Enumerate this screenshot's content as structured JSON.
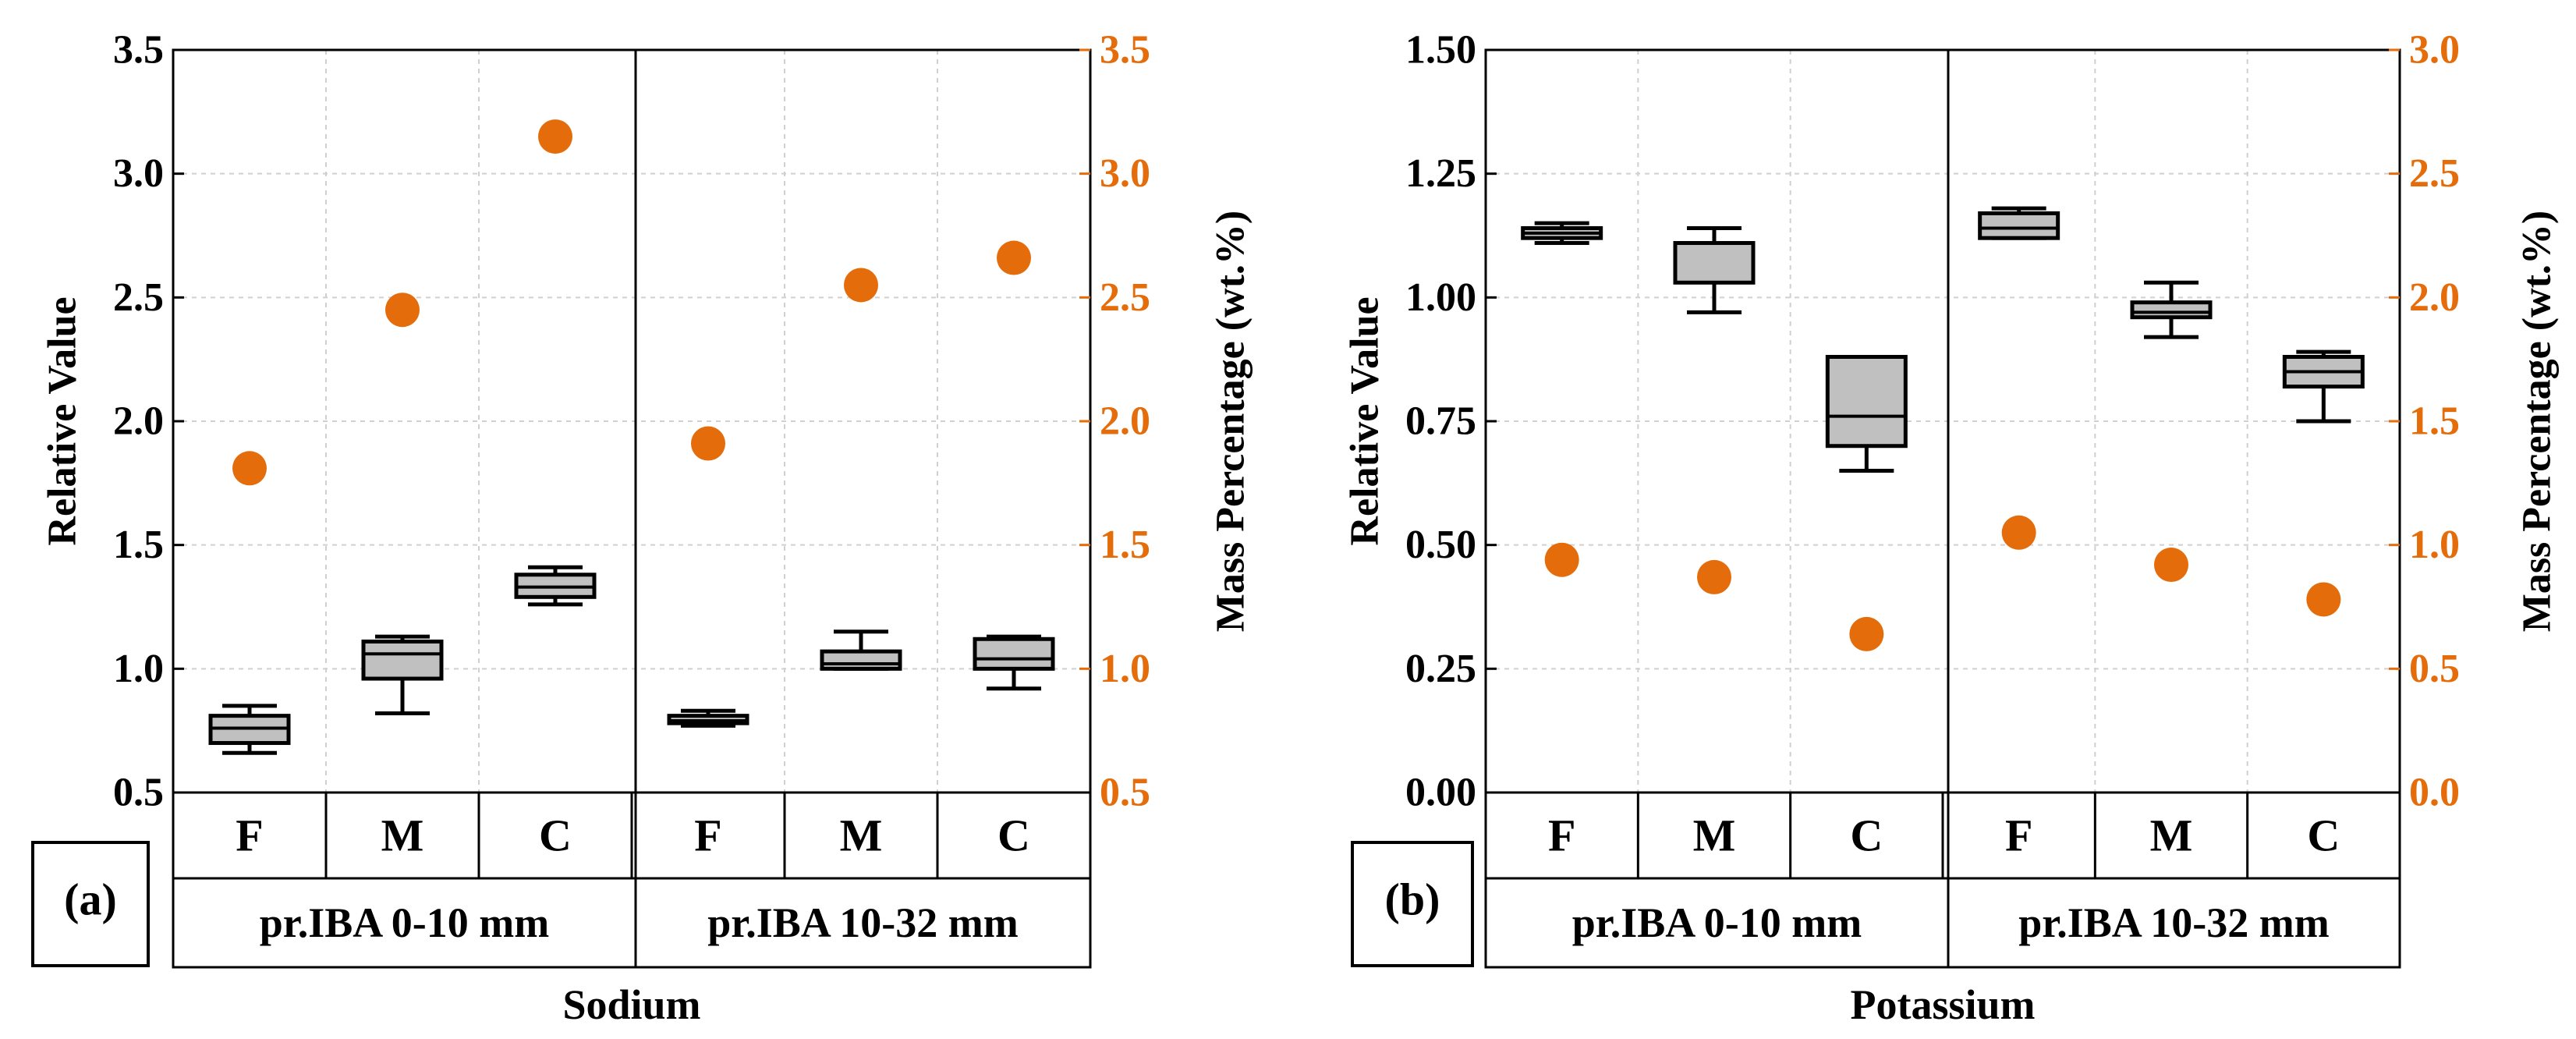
{
  "colors": {
    "box_fill": "#c0c0c0",
    "axis": "#000000",
    "mass_marker": "#e46c0a",
    "grid": "#d0d0d0"
  },
  "chart_data": [
    {
      "type": "box",
      "panel_label": "(a)",
      "xlabel": "Sodium",
      "ylabel_left": "Relative Value",
      "ylabel_right": "Mass Percentage (wt.%)",
      "ylim_left": [
        0.5,
        3.5
      ],
      "ylim_right": [
        0.5,
        3.5
      ],
      "yticks_left": [
        "0.5",
        "1.0",
        "1.5",
        "2.0",
        "2.5",
        "3.0",
        "3.5"
      ],
      "yticks_right": [
        "0.5",
        "1.0",
        "1.5",
        "2.0",
        "2.5",
        "3.0",
        "3.5"
      ],
      "groups": [
        "pr.IBA 0-10 mm",
        "pr.IBA 10-32 mm"
      ],
      "categories": [
        "F",
        "M",
        "C",
        "F",
        "M",
        "C"
      ],
      "boxes": [
        {
          "category": "F",
          "group": "pr.IBA 0-10 mm",
          "min": 0.66,
          "q1": 0.7,
          "median": 0.76,
          "q3": 0.81,
          "max": 0.85
        },
        {
          "category": "M",
          "group": "pr.IBA 0-10 mm",
          "min": 0.82,
          "q1": 0.96,
          "median": 1.06,
          "q3": 1.11,
          "max": 1.13
        },
        {
          "category": "C",
          "group": "pr.IBA 0-10 mm",
          "min": 1.26,
          "q1": 1.29,
          "median": 1.33,
          "q3": 1.38,
          "max": 1.41
        },
        {
          "category": "F",
          "group": "pr.IBA 10-32 mm",
          "min": 0.77,
          "q1": 0.78,
          "median": 0.79,
          "q3": 0.81,
          "max": 0.83
        },
        {
          "category": "M",
          "group": "pr.IBA 10-32 mm",
          "min": 1.0,
          "q1": 1.0,
          "median": 1.02,
          "q3": 1.07,
          "max": 1.15
        },
        {
          "category": "C",
          "group": "pr.IBA 10-32 mm",
          "min": 0.92,
          "q1": 1.0,
          "median": 1.04,
          "q3": 1.12,
          "max": 1.13
        }
      ],
      "mass_percentage": [
        1.81,
        2.45,
        3.15,
        1.91,
        2.55,
        2.66
      ]
    },
    {
      "type": "box",
      "panel_label": "(b)",
      "xlabel": "Potassium",
      "ylabel_left": "Relative Value",
      "ylabel_right": "Mass Percentage (wt.%)",
      "ylim_left": [
        0.0,
        1.5
      ],
      "ylim_right": [
        0.0,
        3.0
      ],
      "yticks_left": [
        "0.00",
        "0.25",
        "0.50",
        "0.75",
        "1.00",
        "1.25",
        "1.50"
      ],
      "yticks_right": [
        "0.0",
        "0.5",
        "1.0",
        "1.5",
        "2.0",
        "2.5",
        "3.0"
      ],
      "groups": [
        "pr.IBA 0-10 mm",
        "pr.IBA 10-32 mm"
      ],
      "categories": [
        "F",
        "M",
        "C",
        "F",
        "M",
        "C"
      ],
      "boxes": [
        {
          "category": "F",
          "group": "pr.IBA 0-10 mm",
          "min": 1.11,
          "q1": 1.12,
          "median": 1.13,
          "q3": 1.14,
          "max": 1.15
        },
        {
          "category": "M",
          "group": "pr.IBA 0-10 mm",
          "min": 0.97,
          "q1": 1.03,
          "median": 1.03,
          "q3": 1.11,
          "max": 1.14
        },
        {
          "category": "C",
          "group": "pr.IBA 0-10 mm",
          "min": 0.65,
          "q1": 0.7,
          "median": 0.76,
          "q3": 0.88,
          "max": 0.88
        },
        {
          "category": "F",
          "group": "pr.IBA 10-32 mm",
          "min": 1.12,
          "q1": 1.12,
          "median": 1.14,
          "q3": 1.17,
          "max": 1.18
        },
        {
          "category": "M",
          "group": "pr.IBA 10-32 mm",
          "min": 0.92,
          "q1": 0.96,
          "median": 0.97,
          "q3": 0.99,
          "max": 1.03
        },
        {
          "category": "C",
          "group": "pr.IBA 10-32 mm",
          "min": 0.75,
          "q1": 0.82,
          "median": 0.85,
          "q3": 0.88,
          "max": 0.89
        }
      ],
      "mass_percentage": [
        0.94,
        0.87,
        0.64,
        1.05,
        0.92,
        0.78
      ]
    }
  ]
}
